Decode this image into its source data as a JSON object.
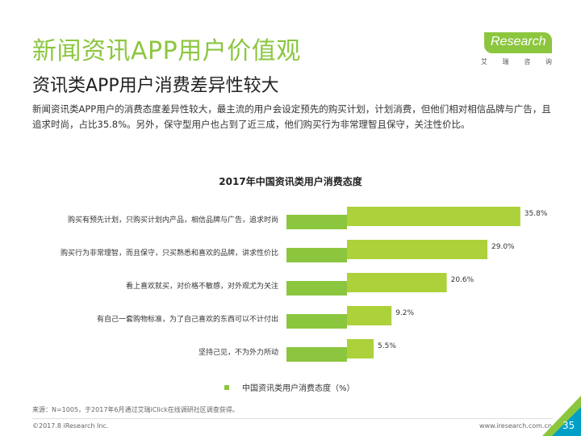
{
  "header": {
    "title": "新闻资讯APP用户价值观",
    "subtitle": "资讯类APP用户消费差异性较大",
    "description": "新闻资讯类APP用户的消费态度差异性较大，最主流的用户会设定预先的购买计划，计划消费，但他们相对相信品牌与广告，且追求时尚，占比35.8%。另外，保守型用户也占到了近三成，他们购买行为非常理智且保守，关注性价比。"
  },
  "logo": {
    "i": "i",
    "text": "Research",
    "sub": [
      "艾",
      "瑞",
      "咨",
      "询"
    ]
  },
  "chart_data": {
    "type": "bar",
    "orientation": "horizontal",
    "title": "2017年中国资讯类用户消费态度",
    "categories": [
      "购买有预先计划，只购买计划内产品，相信品牌与广告，追求时尚",
      "购买行为非常理智，而且保守，只买熟悉和喜欢的品牌，讲求性价比",
      "看上喜欢就买，对价格不敏感，对外观尤为关注",
      "有自己一套购物标准，为了自己喜欢的东西可以不计付出",
      "坚持己见，不为外力所动"
    ],
    "values": [
      35.8,
      29.0,
      20.6,
      9.2,
      5.5
    ],
    "value_labels": [
      "35.8%",
      "29.0%",
      "20.6%",
      "9.2%",
      "5.5%"
    ],
    "series": [
      {
        "name": "中国资讯类用户消费态度（%）",
        "values": [
          35.8,
          29.0,
          20.6,
          9.2,
          5.5
        ]
      }
    ],
    "xlim": [
      0,
      40
    ],
    "grid": false,
    "legend_position": "bottom",
    "colors": {
      "bar": "#acd13a",
      "bar_shadow": "#8cc63f"
    }
  },
  "legend": {
    "label": "中国资讯类用户消费态度（%）"
  },
  "footer": {
    "source": "来源：N=1005，于2017年6月通过艾瑞iClick在线调研社区调查获得。",
    "copyright": "©2017.8 iResearch Inc.",
    "website": "www.iresearch.com.cn",
    "page": "35"
  }
}
